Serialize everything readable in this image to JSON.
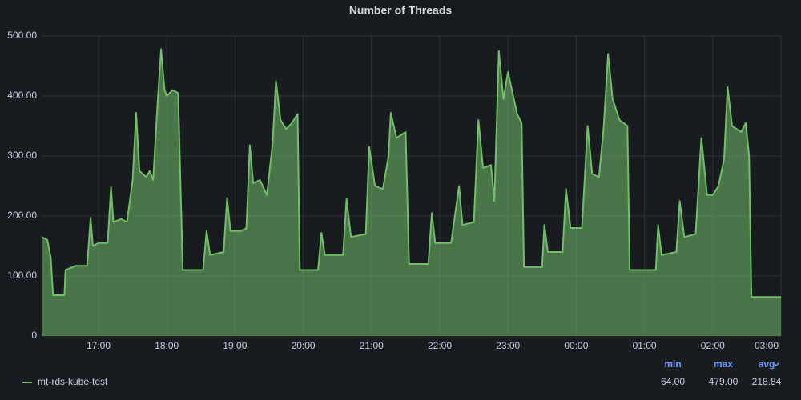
{
  "chart_data": {
    "type": "line",
    "title": "Number of Threads",
    "x": [
      "16:10",
      "16:15",
      "16:18",
      "16:20",
      "16:30",
      "16:31",
      "16:40",
      "16:50",
      "16:53",
      "16:55",
      "17:00",
      "17:08",
      "17:11",
      "17:13",
      "17:20",
      "17:25",
      "17:30",
      "17:33",
      "17:36",
      "17:42",
      "17:45",
      "17:48",
      "17:52",
      "17:55",
      "17:58",
      "18:00",
      "18:05",
      "18:10",
      "18:14",
      "18:32",
      "18:35",
      "18:38",
      "18:50",
      "18:53",
      "18:56",
      "19:05",
      "19:10",
      "19:13",
      "19:16",
      "19:22",
      "19:28",
      "19:33",
      "19:36",
      "19:40",
      "19:45",
      "19:50",
      "19:55",
      "19:57",
      "20:13",
      "20:16",
      "20:19",
      "20:35",
      "20:38",
      "20:42",
      "20:55",
      "20:58",
      "21:03",
      "21:10",
      "21:15",
      "21:17",
      "21:22",
      "21:30",
      "21:33",
      "21:50",
      "21:53",
      "21:56",
      "22:10",
      "22:17",
      "22:20",
      "22:30",
      "22:34",
      "22:38",
      "22:45",
      "22:48",
      "22:52",
      "22:56",
      "23:00",
      "23:08",
      "23:12",
      "23:14",
      "23:30",
      "23:32",
      "23:35",
      "23:48",
      "23:51",
      "23:55",
      "00:05",
      "00:10",
      "00:14",
      "00:20",
      "00:24",
      "00:28",
      "00:32",
      "00:38",
      "00:45",
      "00:47",
      "01:10",
      "01:12",
      "01:15",
      "01:28",
      "01:31",
      "01:35",
      "01:45",
      "01:50",
      "01:55",
      "02:00",
      "02:05",
      "02:10",
      "02:13",
      "02:17",
      "02:25",
      "02:29",
      "02:32",
      "02:34",
      "03:00"
    ],
    "series": [
      {
        "name": "mt-rds-kube-test",
        "color": "#73bf69",
        "values": [
          165,
          160,
          130,
          68,
          68,
          110,
          117,
          117,
          197,
          150,
          155,
          155,
          248,
          190,
          195,
          190,
          260,
          372,
          275,
          265,
          275,
          260,
          390,
          478,
          410,
          400,
          410,
          405,
          110,
          110,
          175,
          135,
          140,
          230,
          175,
          175,
          180,
          318,
          255,
          260,
          235,
          320,
          425,
          360,
          345,
          355,
          370,
          110,
          110,
          172,
          135,
          135,
          228,
          165,
          170,
          315,
          250,
          245,
          300,
          372,
          330,
          340,
          120,
          120,
          205,
          155,
          155,
          250,
          185,
          190,
          360,
          280,
          285,
          225,
          475,
          395,
          440,
          370,
          355,
          115,
          115,
          185,
          140,
          140,
          245,
          180,
          180,
          350,
          270,
          265,
          345,
          470,
          395,
          360,
          350,
          110,
          110,
          185,
          135,
          140,
          225,
          165,
          170,
          330,
          235,
          235,
          250,
          295,
          415,
          350,
          340,
          355,
          300,
          65,
          65
        ]
      }
    ],
    "xlim": [
      "16:10",
      "03:00"
    ],
    "xticks": [
      "17:00",
      "18:00",
      "19:00",
      "20:00",
      "21:00",
      "22:00",
      "23:00",
      "00:00",
      "01:00",
      "02:00",
      "03:00"
    ],
    "ylim": [
      0,
      500
    ],
    "yticks": [
      0,
      {
        "value": 100,
        "label": "100.00"
      },
      {
        "value": 200,
        "label": "200.00"
      },
      {
        "value": 300,
        "label": "300.00"
      },
      {
        "value": 400,
        "label": "400.00"
      },
      {
        "value": 500,
        "label": "500.00"
      }
    ],
    "grid": true,
    "legend": {
      "stat_headers": [
        "min",
        "max",
        "avg"
      ],
      "stats": [
        64,
        479,
        218.84
      ],
      "stat_labels": [
        "64.00",
        "479.00",
        "218.84"
      ]
    }
  }
}
